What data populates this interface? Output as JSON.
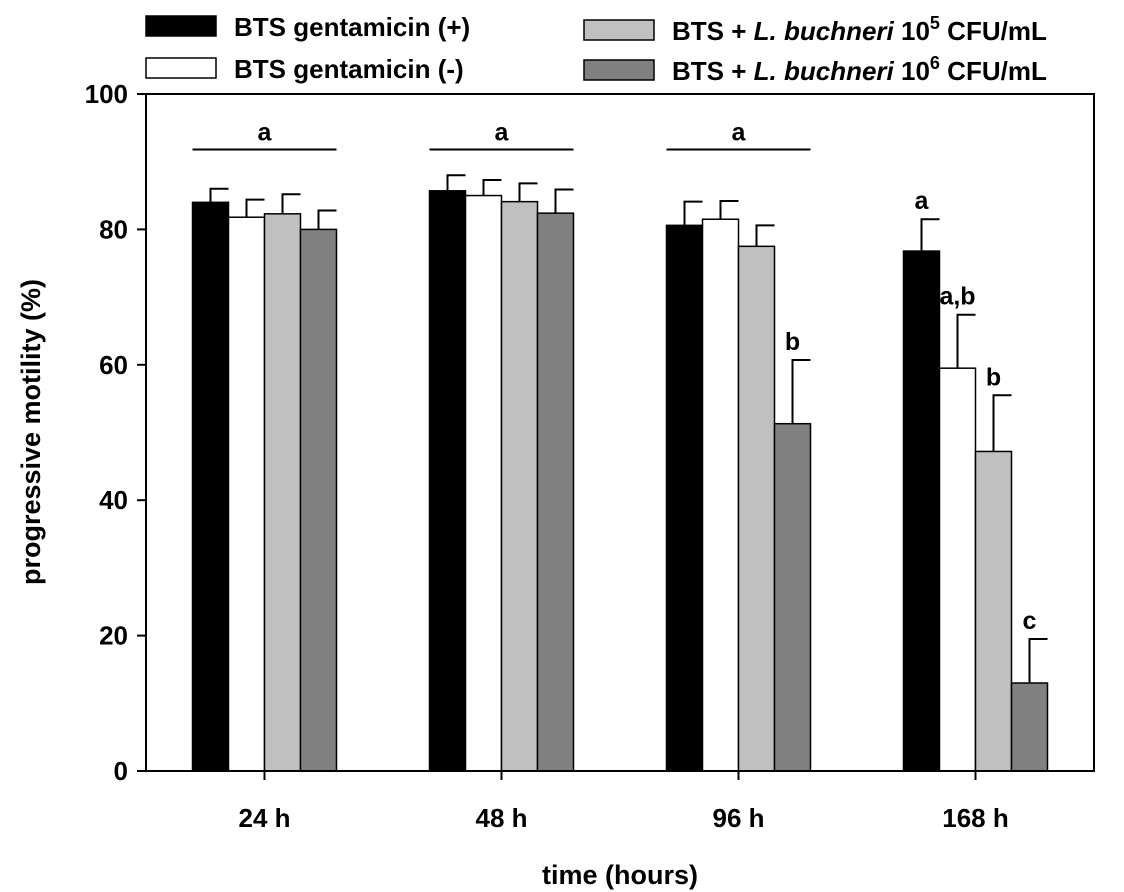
{
  "chart_data": {
    "type": "bar",
    "title": "",
    "xlabel": "time (hours)",
    "ylabel": "progressive motility (%)",
    "ylim": [
      0,
      100
    ],
    "yticks": [
      0,
      20,
      40,
      60,
      80,
      100
    ],
    "categories": [
      "24 h",
      "48 h",
      "96 h",
      "168 h"
    ],
    "grid": false,
    "legend_position": "top",
    "series": [
      {
        "name": "BTS gentamicin (+)",
        "legend_parts": [
          "BTS gentamicin (+)"
        ],
        "color": "#000000",
        "values": [
          84,
          85.7,
          80.6,
          76.8
        ],
        "errors": [
          2,
          2.3,
          3.5,
          4.7
        ],
        "labels": [
          "",
          "",
          "",
          "a"
        ]
      },
      {
        "name": "BTS gentamicin (-)",
        "legend_parts": [
          "BTS gentamicin (-)"
        ],
        "color": "#ffffff",
        "values": [
          81.8,
          85,
          81.5,
          59.5
        ],
        "errors": [
          2.6,
          2.3,
          2.7,
          7.9
        ],
        "labels": [
          "",
          "",
          "",
          "a,b"
        ]
      },
      {
        "name": "BTS + L. buchneri 10^5 CFU/mL",
        "legend_parts": [
          "BTS + ",
          "L. buchneri",
          " 10",
          "5",
          " CFU/mL"
        ],
        "color": "#c0c0c0",
        "values": [
          82.3,
          84.1,
          77.5,
          47.2
        ],
        "errors": [
          2.9,
          2.7,
          3.1,
          8.3
        ],
        "labels": [
          "",
          "",
          "",
          "b"
        ]
      },
      {
        "name": "BTS + L. buchneri 10^6 CFU/mL",
        "legend_parts": [
          "BTS + ",
          "L. buchneri",
          " 10",
          "6",
          " CFU/mL"
        ],
        "color": "#808080",
        "values": [
          80,
          82.4,
          51.3,
          13
        ],
        "errors": [
          2.8,
          3.5,
          9.4,
          6.5
        ],
        "labels": [
          "",
          "",
          "b",
          "c"
        ]
      }
    ],
    "group_annotations": [
      {
        "category": "24 h",
        "label": "a",
        "y": 91.8
      },
      {
        "category": "48 h",
        "label": "a",
        "y": 91.8
      },
      {
        "category": "96 h",
        "label": "a",
        "y": 91.8
      }
    ]
  }
}
